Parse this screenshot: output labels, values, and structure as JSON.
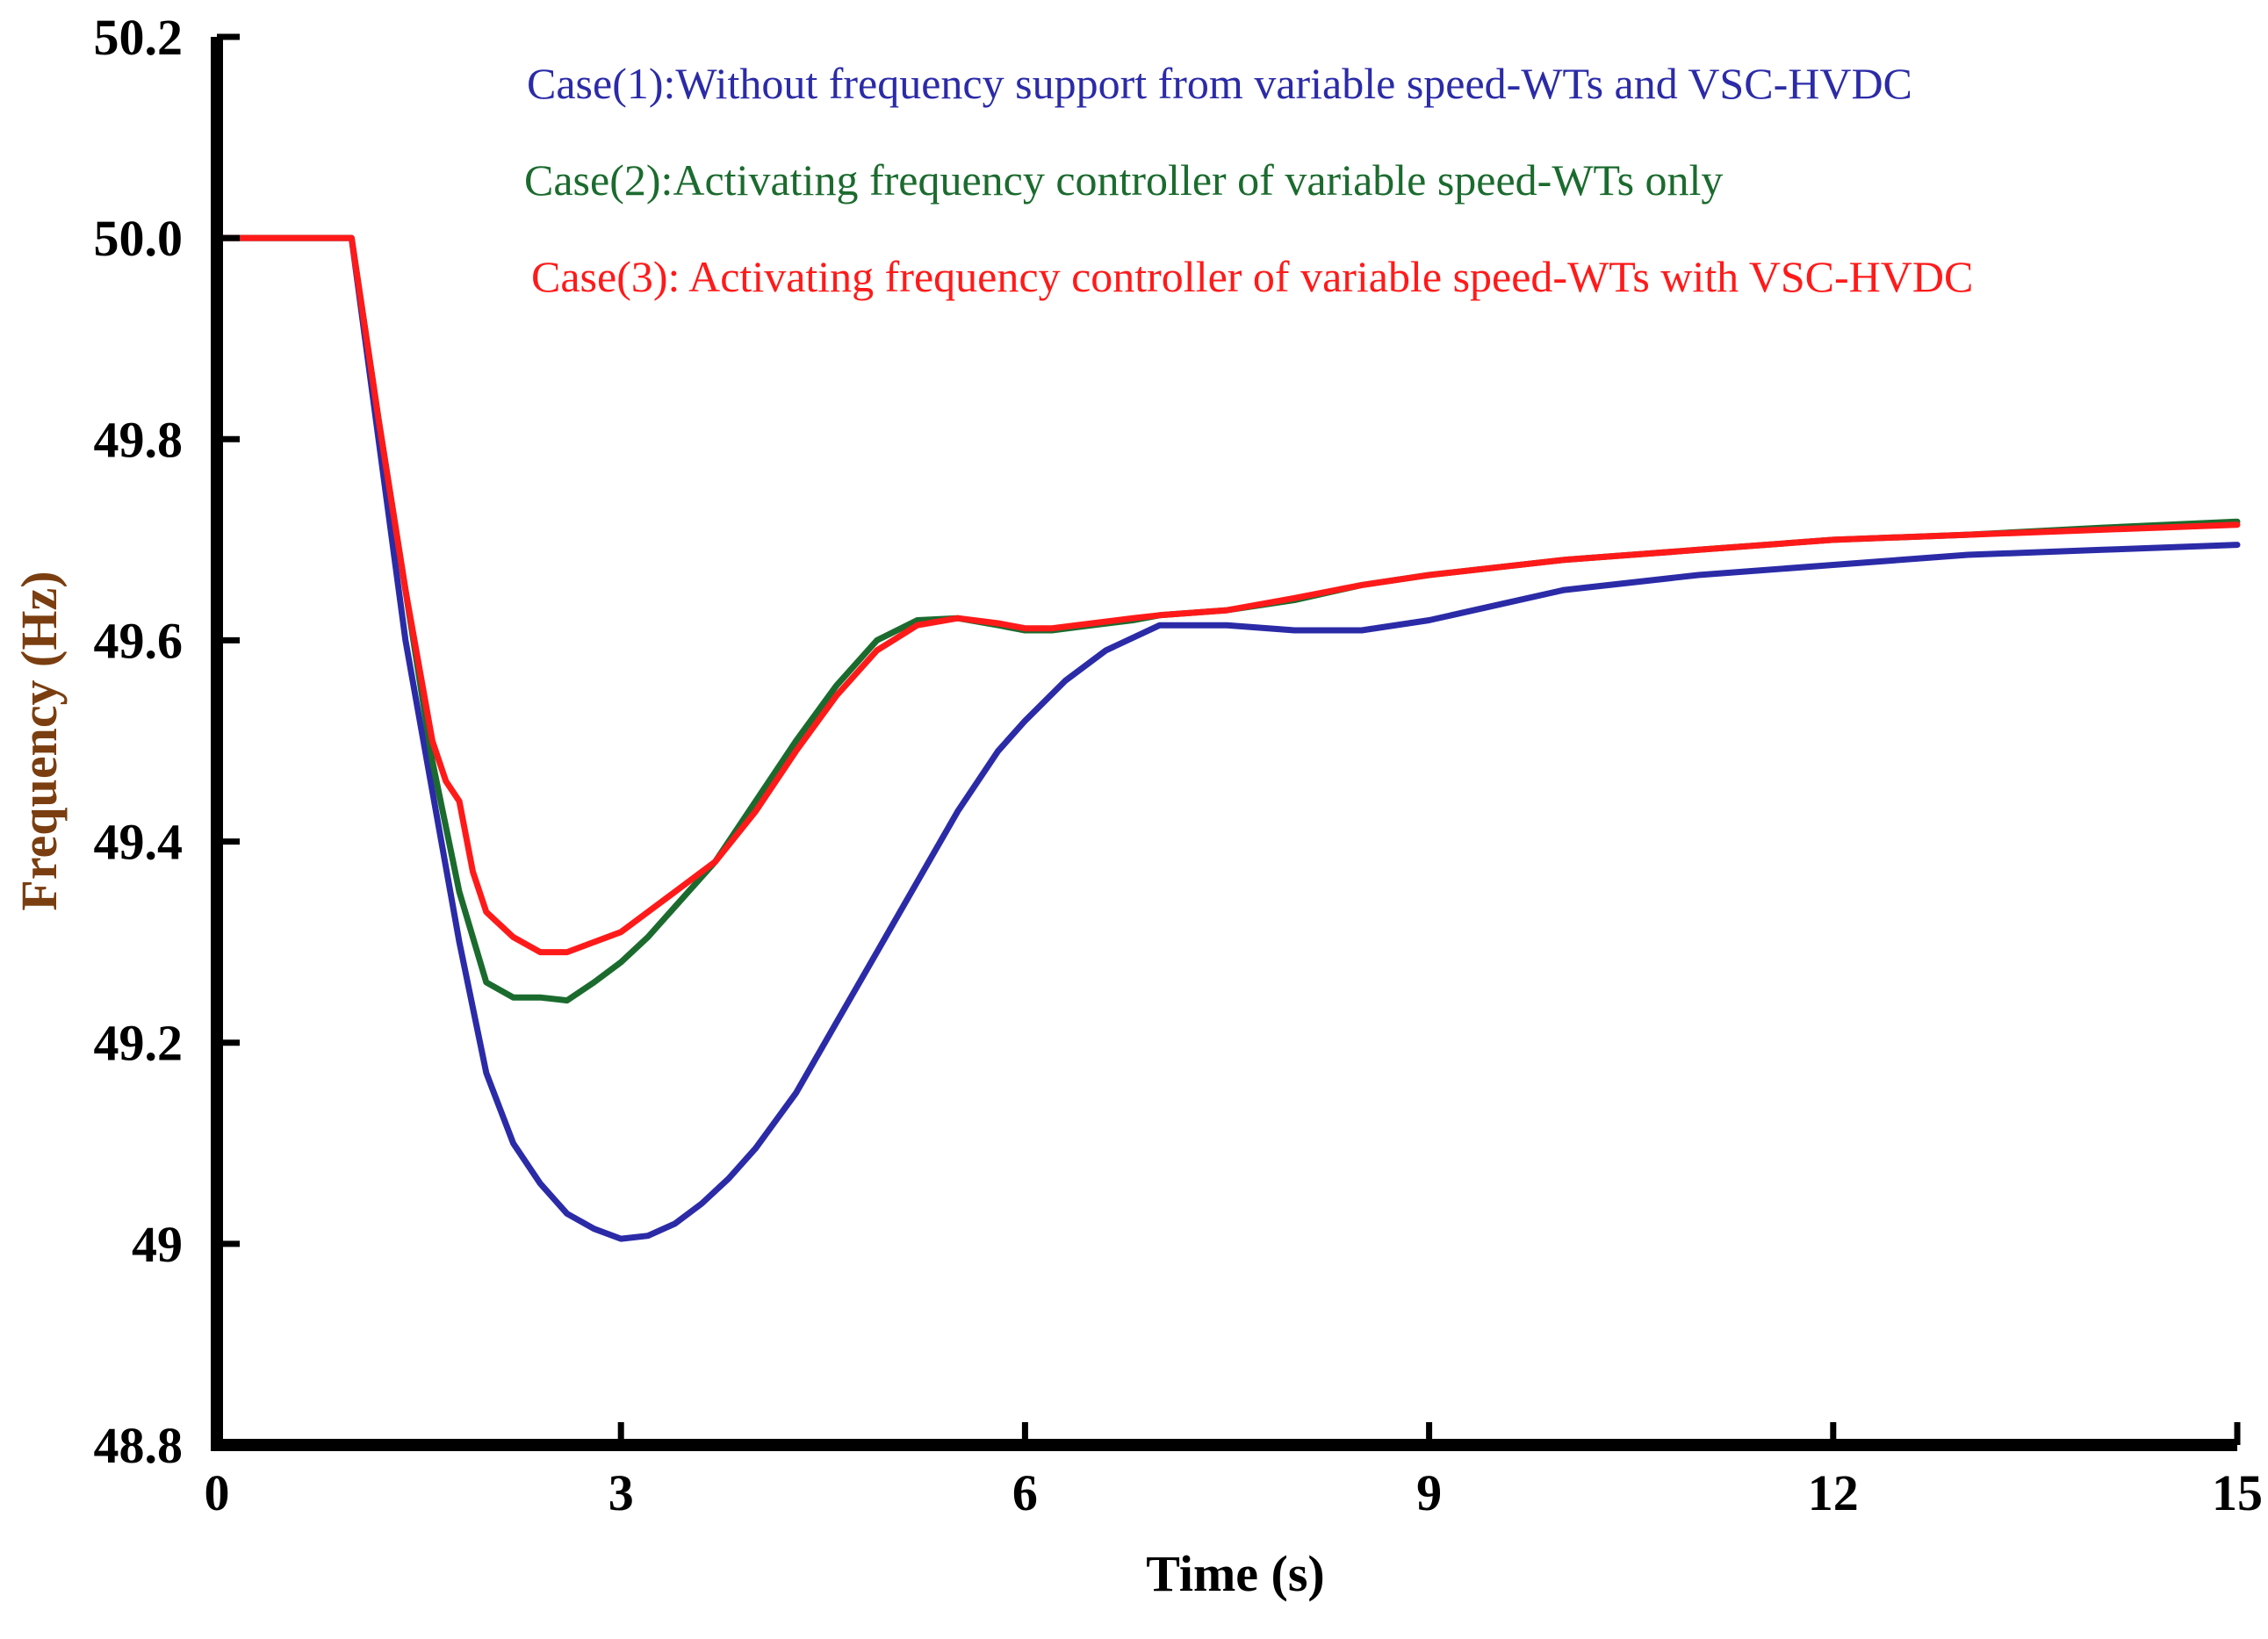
{
  "chart_data": {
    "type": "line",
    "title": "",
    "xlabel": "Time (s)",
    "ylabel": "Frequency (Hz)",
    "xlim": [
      0,
      15
    ],
    "ylim": [
      48.8,
      50.2
    ],
    "xticks": [
      "0",
      "3",
      "6",
      "9",
      "12",
      "15"
    ],
    "yticks": [
      "48.8",
      "49",
      "49.2",
      "49.4",
      "49.6",
      "49.8",
      "50.0",
      "50.2"
    ],
    "legend_position": "top-center",
    "series": [
      {
        "name": "Case(1):Without frequency support from variable speed-WTs and VSC-HVDC",
        "color": "#2b2ba8",
        "x": [
          0,
          1.0,
          1.2,
          1.4,
          1.6,
          1.8,
          2.0,
          2.2,
          2.4,
          2.6,
          2.8,
          3.0,
          3.2,
          3.4,
          3.6,
          3.8,
          4.0,
          4.3,
          4.6,
          4.9,
          5.2,
          5.5,
          5.8,
          6.0,
          6.3,
          6.6,
          7.0,
          7.5,
          8.0,
          8.5,
          9.0,
          9.5,
          10.0,
          11.0,
          12.0,
          13.0,
          14.0,
          15.0
        ],
        "y": [
          50.0,
          50.0,
          49.8,
          49.6,
          49.45,
          49.3,
          49.17,
          49.1,
          49.06,
          49.03,
          49.015,
          49.005,
          49.008,
          49.02,
          49.04,
          49.065,
          49.095,
          49.15,
          49.22,
          49.29,
          49.36,
          49.43,
          49.49,
          49.52,
          49.56,
          49.59,
          49.615,
          49.615,
          49.61,
          49.61,
          49.62,
          49.635,
          49.65,
          49.665,
          49.675,
          49.685,
          49.69,
          49.695
        ]
      },
      {
        "name": "Case(2):Activating frequency controller of variable speed-WTs only",
        "color": "#1b6b2e",
        "x": [
          0,
          1.0,
          1.2,
          1.4,
          1.6,
          1.8,
          2.0,
          2.2,
          2.4,
          2.6,
          2.8,
          3.0,
          3.2,
          3.4,
          3.7,
          4.0,
          4.3,
          4.6,
          4.9,
          5.2,
          5.5,
          5.8,
          6.0,
          6.2,
          6.5,
          6.8,
          7.0,
          7.5,
          8.0,
          8.5,
          9.0,
          10.0,
          11.0,
          12.0,
          13.0,
          14.0,
          15.0
        ],
        "y": [
          50.0,
          50.0,
          49.82,
          49.65,
          49.48,
          49.35,
          49.26,
          49.245,
          49.245,
          49.242,
          49.26,
          49.28,
          49.305,
          49.335,
          49.38,
          49.44,
          49.5,
          49.555,
          49.6,
          49.62,
          49.622,
          49.615,
          49.61,
          49.61,
          49.615,
          49.62,
          49.625,
          49.63,
          49.64,
          49.655,
          49.665,
          49.68,
          49.69,
          49.7,
          49.705,
          49.712,
          49.718
        ]
      },
      {
        "name": "Case(3): Activating frequency controller of variable speed-WTs with VSC-HVDC",
        "color": "#ff1a1a",
        "x": [
          0,
          1.0,
          1.2,
          1.4,
          1.6,
          1.7,
          1.8,
          1.9,
          2.0,
          2.2,
          2.4,
          2.6,
          2.8,
          3.0,
          3.2,
          3.4,
          3.7,
          4.0,
          4.3,
          4.6,
          4.9,
          5.2,
          5.5,
          5.8,
          6.0,
          6.2,
          6.5,
          6.8,
          7.0,
          7.5,
          8.0,
          8.5,
          9.0,
          10.0,
          11.0,
          12.0,
          13.0,
          14.0,
          15.0
        ],
        "y": [
          50.0,
          50.0,
          49.82,
          49.65,
          49.5,
          49.46,
          49.44,
          49.37,
          49.33,
          49.305,
          49.29,
          49.29,
          49.3,
          49.31,
          49.33,
          49.35,
          49.38,
          49.43,
          49.49,
          49.545,
          49.59,
          49.615,
          49.622,
          49.617,
          49.612,
          49.612,
          49.617,
          49.622,
          49.625,
          49.63,
          49.642,
          49.655,
          49.665,
          49.68,
          49.69,
          49.7,
          49.705,
          49.71,
          49.715
        ]
      }
    ]
  }
}
